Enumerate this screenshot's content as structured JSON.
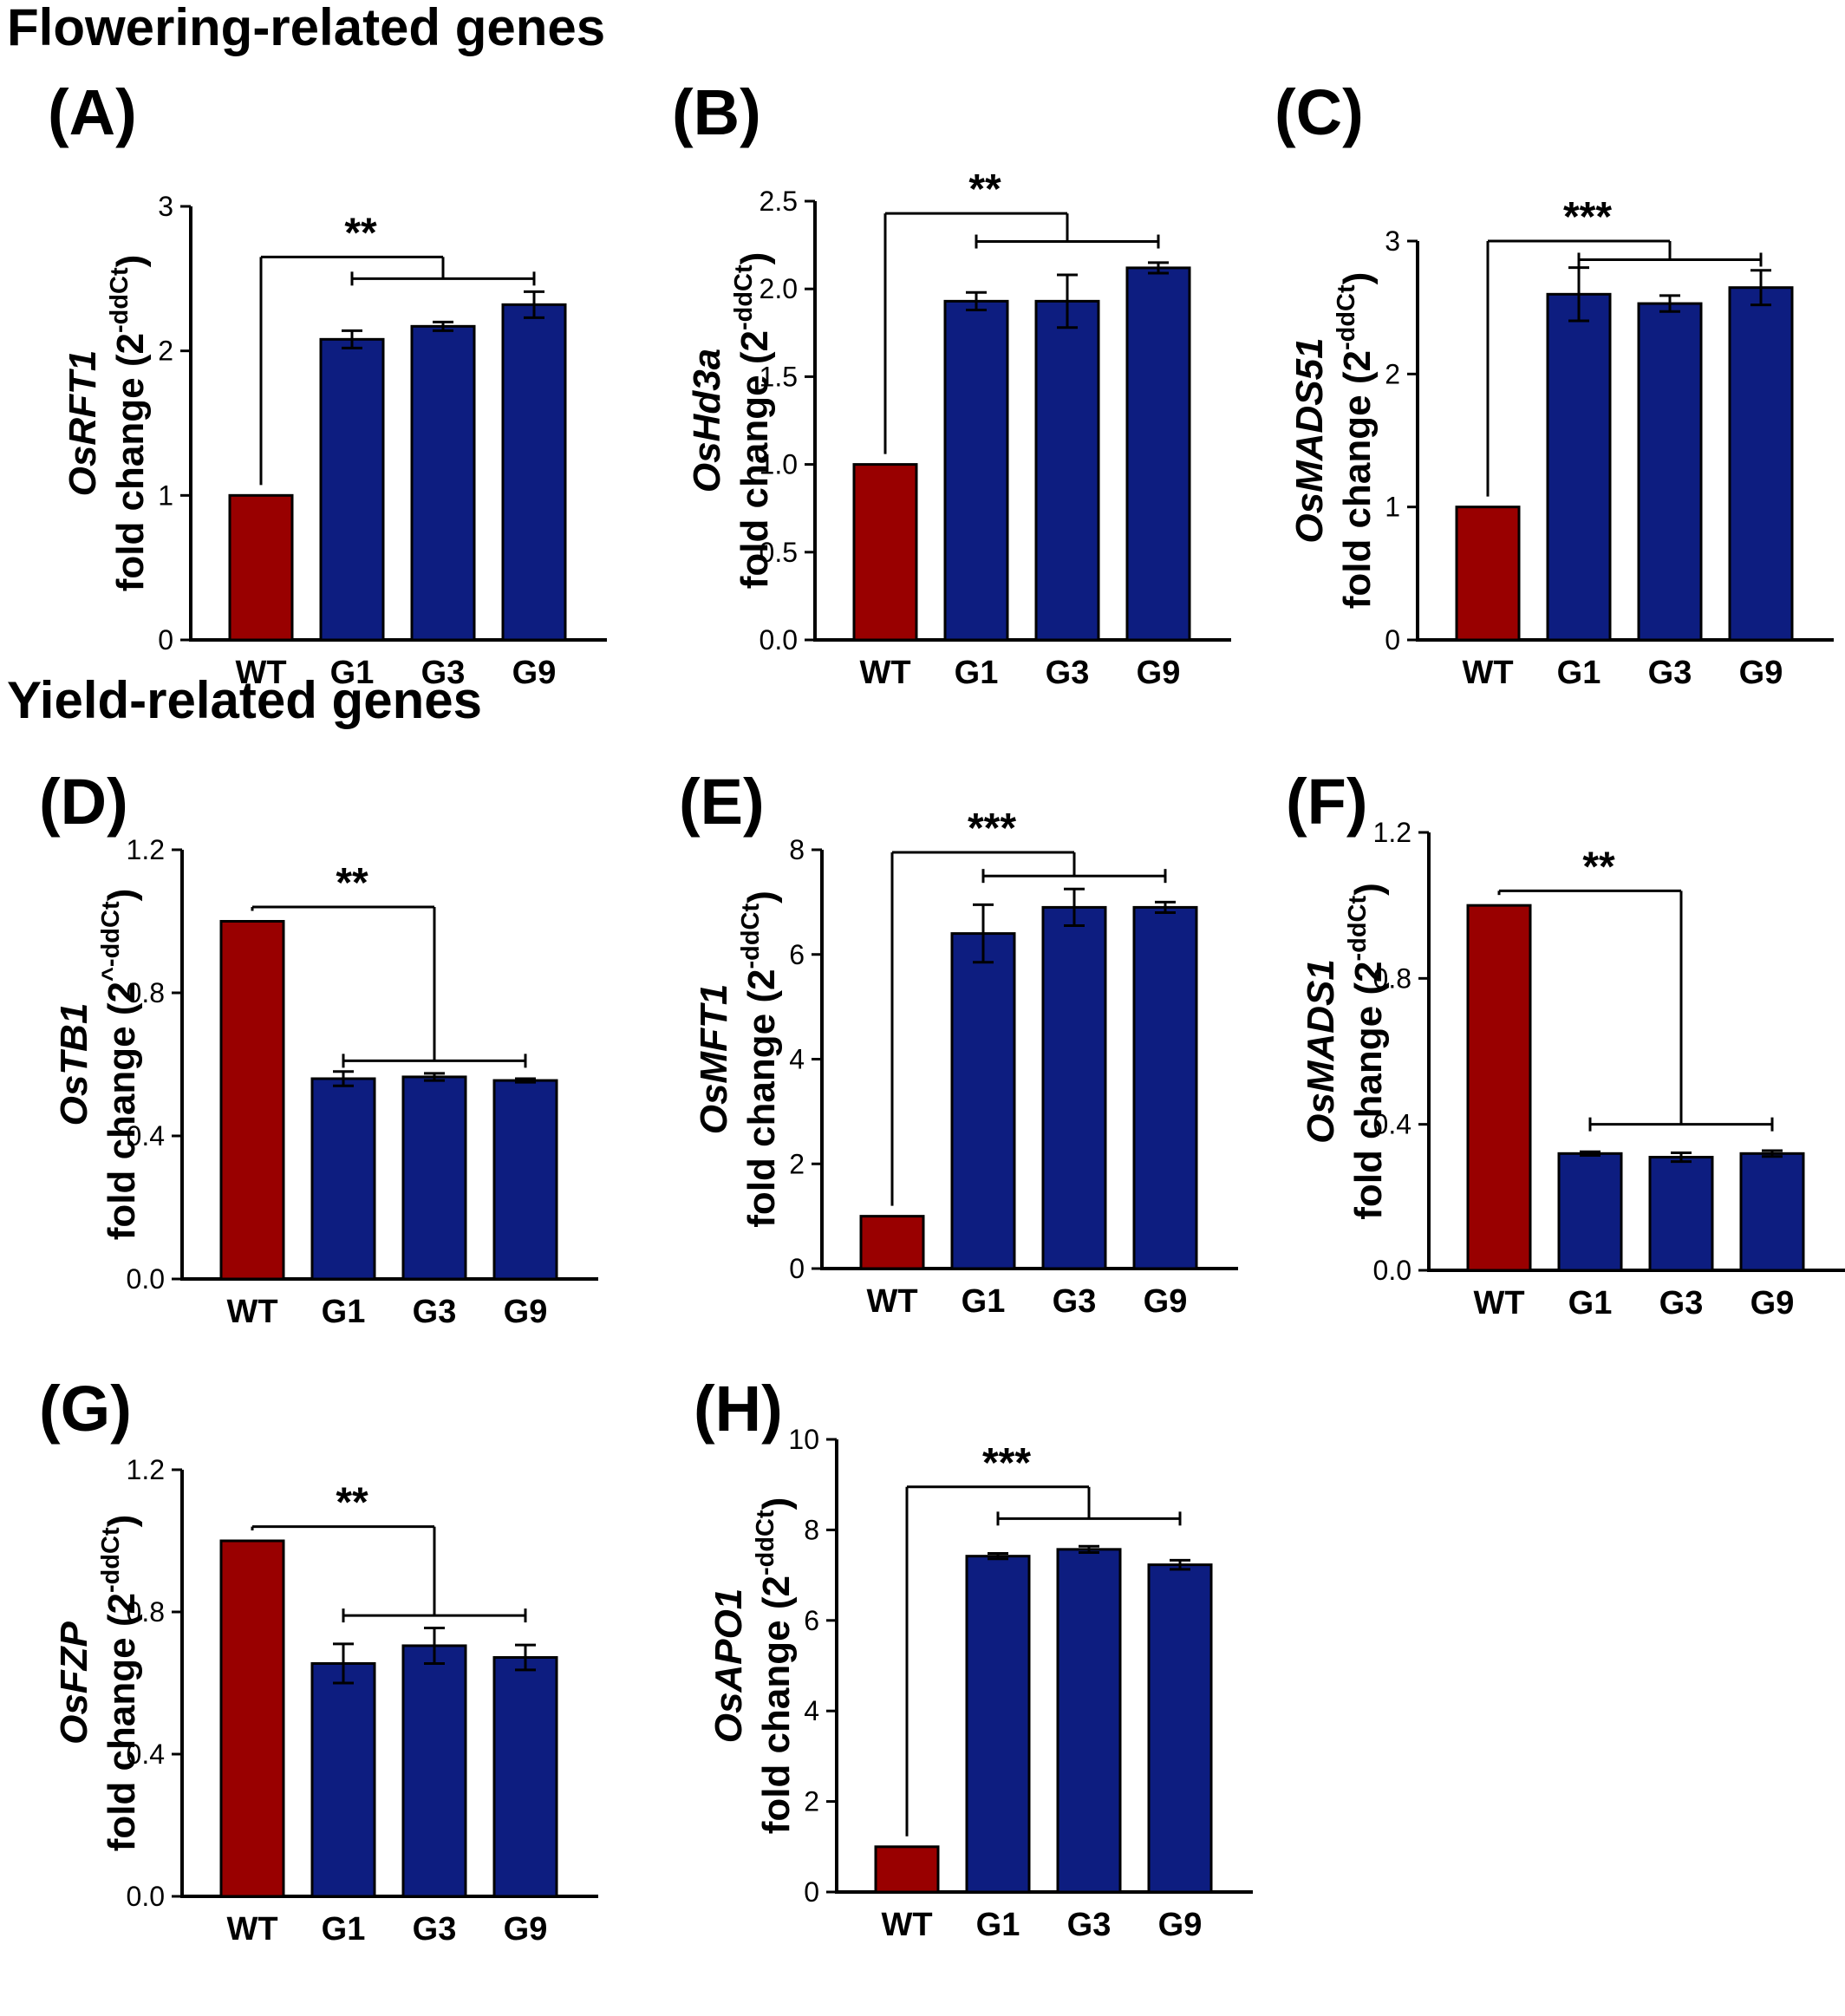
{
  "headings": {
    "flowering": "Flowering-related genes",
    "yield": "Yield-related genes"
  },
  "colors": {
    "wt": "#990000",
    "mutant": "#0d1d80",
    "line": "#000000"
  },
  "chart_data": [
    {
      "type": "bar",
      "panel": "(A)",
      "gene": "OsRFT1",
      "ylabel_line2": "fold change (2",
      "ylabel_sup": "-ddCt",
      "ylabel_close": ")",
      "categories": [
        "WT",
        "G1",
        "G3",
        "G9"
      ],
      "values": [
        1.0,
        2.08,
        2.17,
        2.32
      ],
      "errors": [
        0,
        0.06,
        0.03,
        0.09
      ],
      "ylim": [
        0,
        3
      ],
      "yticks": [
        {
          "v": 0,
          "t": "0"
        },
        {
          "v": 1,
          "t": "1"
        },
        {
          "v": 2,
          "t": "2"
        },
        {
          "v": 3,
          "t": "3"
        }
      ],
      "significance": "**",
      "bracket_top": 2.65,
      "mutant_bracket": 2.5
    },
    {
      "type": "bar",
      "panel": "(B)",
      "gene": "OsHd3a",
      "ylabel_line2": "fold change (2",
      "ylabel_sup": "-ddCt",
      "ylabel_close": ")",
      "categories": [
        "WT",
        "G1",
        "G3",
        "G9"
      ],
      "values": [
        1.0,
        1.93,
        1.93,
        2.12
      ],
      "errors": [
        0,
        0.05,
        0.15,
        0.03
      ],
      "ylim": [
        0,
        2.5
      ],
      "yticks": [
        {
          "v": 0,
          "t": "0.0"
        },
        {
          "v": 0.5,
          "t": "0.5"
        },
        {
          "v": 1.0,
          "t": "1.0"
        },
        {
          "v": 1.5,
          "t": "1.5"
        },
        {
          "v": 2.0,
          "t": "2.0"
        },
        {
          "v": 2.5,
          "t": "2.5"
        }
      ],
      "significance": "**",
      "bracket_top": 2.43,
      "mutant_bracket": 2.27
    },
    {
      "type": "bar",
      "panel": "(C)",
      "gene": "OsMADS51",
      "ylabel_line2": "fold change (2",
      "ylabel_sup": "-ddCt",
      "ylabel_close": ")",
      "categories": [
        "WT",
        "G1",
        "G3",
        "G9"
      ],
      "values": [
        1.0,
        2.6,
        2.53,
        2.65
      ],
      "errors": [
        0,
        0.2,
        0.06,
        0.13
      ],
      "ylim": [
        0,
        3
      ],
      "yticks": [
        {
          "v": 0,
          "t": "0"
        },
        {
          "v": 1,
          "t": "1"
        },
        {
          "v": 2,
          "t": "2"
        },
        {
          "v": 3,
          "t": "3"
        }
      ],
      "significance": "***",
      "bracket_top": 3.0,
      "mutant_bracket": 2.86
    },
    {
      "type": "bar",
      "panel": "(D)",
      "gene": "OsTB1",
      "ylabel_line2": "fold change (2",
      "ylabel_sup": "^-ddCt",
      "ylabel_close": ")",
      "categories": [
        "WT",
        "G1",
        "G3",
        "G9"
      ],
      "values": [
        1.0,
        0.56,
        0.565,
        0.555
      ],
      "errors": [
        0,
        0.02,
        0.01,
        0.005
      ],
      "ylim": [
        0,
        1.2
      ],
      "yticks": [
        {
          "v": 0,
          "t": "0.0"
        },
        {
          "v": 0.4,
          "t": "0.4"
        },
        {
          "v": 0.8,
          "t": "0.8"
        },
        {
          "v": 1.2,
          "t": "1.2"
        }
      ],
      "significance": "**",
      "bracket_top": 1.04,
      "mutant_bracket": 0.61
    },
    {
      "type": "bar",
      "panel": "(E)",
      "gene": "OsMFT1",
      "ylabel_line2": "fold change (2",
      "ylabel_sup": "-ddCt",
      "ylabel_close": ")",
      "categories": [
        "WT",
        "G1",
        "G3",
        "G9"
      ],
      "values": [
        1.0,
        6.4,
        6.9,
        6.9
      ],
      "errors": [
        0,
        0.55,
        0.35,
        0.1
      ],
      "ylim": [
        0,
        8
      ],
      "yticks": [
        {
          "v": 0,
          "t": "0"
        },
        {
          "v": 2,
          "t": "2"
        },
        {
          "v": 4,
          "t": "4"
        },
        {
          "v": 6,
          "t": "6"
        },
        {
          "v": 8,
          "t": "8"
        }
      ],
      "significance": "***",
      "bracket_top": 7.95,
      "mutant_bracket": 7.5
    },
    {
      "type": "bar",
      "panel": "(F)",
      "gene": "OsMADS1",
      "ylabel_line2": "fold change (2",
      "ylabel_sup": "-ddCt",
      "ylabel_close": ")",
      "categories": [
        "WT",
        "G1",
        "G3",
        "G9"
      ],
      "values": [
        1.0,
        0.32,
        0.31,
        0.32
      ],
      "errors": [
        0,
        0.005,
        0.012,
        0.008
      ],
      "ylim": [
        0,
        1.2
      ],
      "yticks": [
        {
          "v": 0,
          "t": "0.0"
        },
        {
          "v": 0.4,
          "t": "0.4"
        },
        {
          "v": 0.8,
          "t": "0.8"
        },
        {
          "v": 1.2,
          "t": "1.2"
        }
      ],
      "significance": "**",
      "bracket_top": 1.04,
      "mutant_bracket": 0.4
    },
    {
      "type": "bar",
      "panel": "(G)",
      "gene": "OsFZP",
      "ylabel_line2": "fold change (2",
      "ylabel_sup": "-ddCt",
      "ylabel_close": ")",
      "categories": [
        "WT",
        "G1",
        "G3",
        "G9"
      ],
      "values": [
        1.0,
        0.655,
        0.705,
        0.672
      ],
      "errors": [
        0,
        0.055,
        0.05,
        0.035
      ],
      "ylim": [
        0,
        1.2
      ],
      "yticks": [
        {
          "v": 0,
          "t": "0.0"
        },
        {
          "v": 0.4,
          "t": "0.4"
        },
        {
          "v": 0.8,
          "t": "0.8"
        },
        {
          "v": 1.2,
          "t": "1.2"
        }
      ],
      "significance": "**",
      "bracket_top": 1.04,
      "mutant_bracket": 0.79
    },
    {
      "type": "bar",
      "panel": "(H)",
      "gene": "OsAPO1",
      "ylabel_line2": "fold change (2",
      "ylabel_sup": "-ddCt",
      "ylabel_close": ")",
      "categories": [
        "WT",
        "G1",
        "G3",
        "G9"
      ],
      "values": [
        1.0,
        7.42,
        7.57,
        7.23
      ],
      "errors": [
        0,
        0.06,
        0.07,
        0.1
      ],
      "ylim": [
        0,
        10
      ],
      "yticks": [
        {
          "v": 0,
          "t": "0"
        },
        {
          "v": 2,
          "t": "2"
        },
        {
          "v": 4,
          "t": "4"
        },
        {
          "v": 6,
          "t": "6"
        },
        {
          "v": 8,
          "t": "8"
        },
        {
          "v": 10,
          "t": "10"
        }
      ],
      "significance": "***",
      "bracket_top": 8.95,
      "mutant_bracket": 8.25
    }
  ]
}
